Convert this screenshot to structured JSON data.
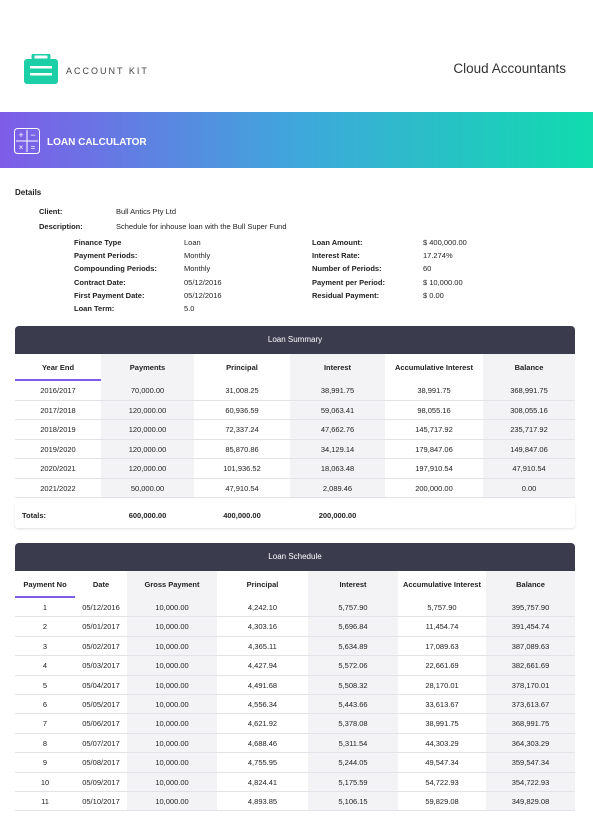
{
  "header": {
    "brand": "ACCOUNT KIT",
    "company": "Cloud Accountants"
  },
  "banner": {
    "title": "LOAN CALCULATOR"
  },
  "details": {
    "heading": "Details",
    "top": [
      {
        "label": "Client:",
        "value": "Bull Antics Pty Ltd"
      },
      {
        "label": "Description:",
        "value": "Schedule for inhouse loan with the Bull Super Fund"
      }
    ],
    "left": [
      {
        "label": "Finance Type",
        "value": "Loan"
      },
      {
        "label": "Payment Periods:",
        "value": "Monthly"
      },
      {
        "label": "Compounding Periods:",
        "value": "Monthly"
      },
      {
        "label": "Contract Date:",
        "value": "05/12/2016"
      },
      {
        "label": "First Payment Date:",
        "value": "05/12/2016"
      },
      {
        "label": "Loan Term:",
        "value": "5.0"
      }
    ],
    "right": [
      {
        "label": "Loan Amount:",
        "value": "$ 400,000.00"
      },
      {
        "label": "Interest Rate:",
        "value": "17.274%"
      },
      {
        "label": "Number of Periods:",
        "value": "60"
      },
      {
        "label": "Payment per Period:",
        "value": "$ 10,000.00"
      },
      {
        "label": "Residual Payment:",
        "value": "$ 0.00"
      }
    ]
  },
  "summary": {
    "title": "Loan Summary",
    "columns": [
      "Year End",
      "Payments",
      "Principal",
      "Interest",
      "Accumulative Interest",
      "Balance"
    ],
    "rows": [
      [
        "2016/2017",
        "70,000.00",
        "31,008.25",
        "38,991.75",
        "38,991.75",
        "368,991.75"
      ],
      [
        "2017/2018",
        "120,000.00",
        "60,936.59",
        "59,063.41",
        "98,055.16",
        "308,055.16"
      ],
      [
        "2018/2019",
        "120,000.00",
        "72,337.24",
        "47,662.76",
        "145,717.92",
        "235,717.92"
      ],
      [
        "2019/2020",
        "120,000.00",
        "85,870.86",
        "34,129.14",
        "179,847.06",
        "149,847.06"
      ],
      [
        "2020/2021",
        "120,000.00",
        "101,936.52",
        "18,063.48",
        "197,910.54",
        "47,910.54"
      ],
      [
        "2021/2022",
        "50,000.00",
        "47,910.54",
        "2,089.46",
        "200,000.00",
        "0.00"
      ]
    ],
    "totals": {
      "label": "Totals:",
      "values": [
        "600,000.00",
        "400,000.00",
        "200,000.00"
      ]
    }
  },
  "schedule": {
    "title": "Loan Schedule",
    "columns": [
      "Payment No",
      "Date",
      "Gross Payment",
      "Principal",
      "Interest",
      "Accumulative Interest",
      "Balance"
    ],
    "rows": [
      [
        "1",
        "05/12/2016",
        "10,000.00",
        "4,242.10",
        "5,757.90",
        "5,757.90",
        "395,757.90"
      ],
      [
        "2",
        "05/01/2017",
        "10,000.00",
        "4,303.16",
        "5,696.84",
        "11,454.74",
        "391,454.74"
      ],
      [
        "3",
        "05/02/2017",
        "10,000.00",
        "4,365.11",
        "5,634.89",
        "17,089.63",
        "387,089.63"
      ],
      [
        "4",
        "05/03/2017",
        "10,000.00",
        "4,427.94",
        "5,572.06",
        "22,661.69",
        "382,661.69"
      ],
      [
        "5",
        "05/04/2017",
        "10,000.00",
        "4,491.68",
        "5,508.32",
        "28,170.01",
        "378,170.01"
      ],
      [
        "6",
        "05/05/2017",
        "10,000.00",
        "4,556.34",
        "5,443.66",
        "33,613.67",
        "373,613.67"
      ],
      [
        "7",
        "05/06/2017",
        "10,000.00",
        "4,621.92",
        "5,378.08",
        "38,991.75",
        "368,991.75"
      ],
      [
        "8",
        "05/07/2017",
        "10,000.00",
        "4,688.46",
        "5,311.54",
        "44,303.29",
        "364,303.29"
      ],
      [
        "9",
        "05/08/2017",
        "10,000.00",
        "4,755.95",
        "5,244.05",
        "49,547.34",
        "359,547.34"
      ],
      [
        "10",
        "05/09/2017",
        "10,000.00",
        "4,824.41",
        "5,175.59",
        "54,722.93",
        "354,722.93"
      ],
      [
        "11",
        "05/10/2017",
        "10,000.00",
        "4,893.85",
        "5,106.15",
        "59,829.08",
        "349,829.08"
      ]
    ]
  }
}
